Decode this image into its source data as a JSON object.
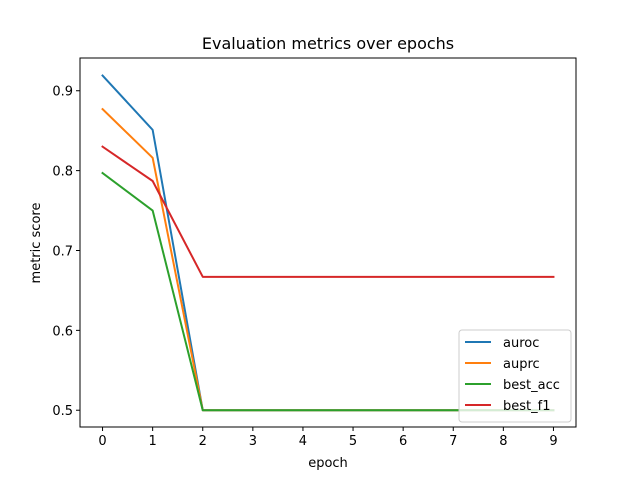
{
  "chart_data": {
    "type": "line",
    "title": "Evaluation metrics over epochs",
    "xlabel": "epoch",
    "ylabel": "metric score",
    "x": [
      0,
      1,
      2,
      3,
      4,
      5,
      6,
      7,
      8,
      9
    ],
    "xlim": [
      -0.45,
      9.45
    ],
    "ylim": [
      0.479,
      0.941
    ],
    "xticks": [
      "0",
      "1",
      "2",
      "3",
      "4",
      "5",
      "6",
      "7",
      "8",
      "9"
    ],
    "yticks": [
      "0.5",
      "0.6",
      "0.7",
      "0.8",
      "0.9"
    ],
    "ytick_values": [
      0.5,
      0.6,
      0.7,
      0.8,
      0.9
    ],
    "grid": false,
    "legend_position": "lower right",
    "series": [
      {
        "name": "auroc",
        "color": "#1f77b4",
        "values": [
          0.919,
          0.851,
          0.5,
          0.5,
          0.5,
          0.5,
          0.5,
          0.5,
          0.5,
          0.5
        ]
      },
      {
        "name": "auprc",
        "color": "#ff7f0e",
        "values": [
          0.877,
          0.816,
          0.5,
          0.5,
          0.5,
          0.5,
          0.5,
          0.5,
          0.5,
          0.5
        ]
      },
      {
        "name": "best_acc",
        "color": "#2ca02c",
        "values": [
          0.797,
          0.75,
          0.5,
          0.5,
          0.5,
          0.5,
          0.5,
          0.5,
          0.5,
          0.5
        ]
      },
      {
        "name": "best_f1",
        "color": "#d62728",
        "values": [
          0.83,
          0.787,
          0.667,
          0.667,
          0.667,
          0.667,
          0.667,
          0.667,
          0.667,
          0.667
        ]
      }
    ]
  }
}
